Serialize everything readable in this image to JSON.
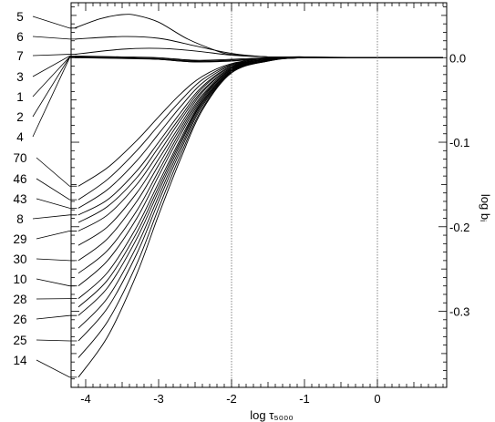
{
  "chart_data": {
    "type": "line",
    "xlabel": "log τ₅₀₀₀",
    "ylabel": "log bᵢ",
    "xlim": [
      -4.2,
      0.95
    ],
    "ylim": [
      -0.39,
      0.065
    ],
    "x_ticks": [
      -4,
      -3,
      -2,
      -1,
      0
    ],
    "x_tick_labels": [
      "-4",
      "-3",
      "-2",
      "-1",
      "0"
    ],
    "y_ticks": [
      0.0,
      -0.1,
      -0.2,
      -0.3
    ],
    "y_tick_labels": [
      "0.0",
      "-0.1",
      "-0.2",
      "-0.3"
    ],
    "vertical_dotted_lines_at": [
      -2,
      0
    ],
    "grid": false,
    "legend": "left",
    "level_labels": [
      "5",
      "6",
      "7",
      "3",
      "1",
      "2",
      "4",
      "70",
      "46",
      "43",
      "8",
      "29",
      "30",
      "10",
      "28",
      "26",
      "25",
      "14"
    ],
    "series": [
      {
        "name": "5",
        "x": [
          -4.15,
          -3.8,
          -3.5,
          -3.3,
          -3.0,
          -2.6,
          -2.2,
          -2.0,
          -1.5,
          -1.0,
          -0.5,
          0.0,
          0.9
        ],
        "values": [
          0.035,
          0.046,
          0.051,
          0.05,
          0.042,
          0.022,
          0.008,
          0.004,
          0.001,
          0.001,
          0.0,
          0.0,
          0.0
        ]
      },
      {
        "name": "6",
        "x": [
          -4.15,
          -3.5,
          -3.0,
          -2.5,
          -2.0,
          -1.5,
          -1.0,
          0.0,
          0.9
        ],
        "values": [
          0.022,
          0.025,
          0.023,
          0.014,
          0.005,
          0.001,
          0.001,
          0.0,
          0.0
        ]
      },
      {
        "name": "7",
        "x": [
          -4.15,
          -3.5,
          -3.0,
          -2.5,
          -2.0,
          -1.5,
          -1.0,
          0.0,
          0.9
        ],
        "values": [
          0.004,
          0.01,
          0.011,
          0.008,
          0.003,
          0.001,
          0.0,
          0.0,
          0.0
        ]
      },
      {
        "name": "3",
        "x": [
          -4.15,
          -3.5,
          -3.0,
          -2.5,
          -2.0,
          -1.5,
          -1.0,
          0.0,
          0.9
        ],
        "values": [
          0.002,
          0.001,
          0.0,
          -0.003,
          -0.002,
          0.0,
          0.0,
          0.0,
          0.0
        ]
      },
      {
        "name": "1",
        "x": [
          -4.15,
          -3.5,
          -3.0,
          -2.5,
          -2.0,
          -1.5,
          -1.0,
          0.0,
          0.9
        ],
        "values": [
          0.001,
          0.0,
          -0.001,
          -0.004,
          -0.003,
          -0.001,
          0.0,
          0.0,
          0.0
        ]
      },
      {
        "name": "2",
        "x": [
          -4.15,
          -3.5,
          -3.0,
          -2.5,
          -2.0,
          -1.5,
          -1.0,
          0.0,
          0.9
        ],
        "values": [
          0.001,
          0.0,
          -0.002,
          -0.005,
          -0.003,
          -0.001,
          0.0,
          0.0,
          0.0
        ]
      },
      {
        "name": "4",
        "x": [
          -4.15,
          -3.5,
          -3.0,
          -2.5,
          -2.0,
          -1.5,
          -1.0,
          0.0,
          0.9
        ],
        "values": [
          0.0,
          -0.001,
          -0.002,
          -0.005,
          -0.004,
          -0.001,
          0.0,
          0.0,
          0.0
        ]
      },
      {
        "name": "70",
        "x": [
          -4.1,
          -3.7,
          -3.3,
          -3.0,
          -2.7,
          -2.4,
          -2.0,
          -1.5,
          -1.0,
          0.0,
          0.9
        ],
        "values": [
          -0.152,
          -0.13,
          -0.098,
          -0.07,
          -0.043,
          -0.022,
          -0.007,
          -0.001,
          0.0,
          0.0,
          0.0
        ]
      },
      {
        "name": "46",
        "x": [
          -4.1,
          -3.7,
          -3.3,
          -3.0,
          -2.7,
          -2.4,
          -2.0,
          -1.5,
          -1.0,
          0.0,
          0.9
        ],
        "values": [
          -0.168,
          -0.144,
          -0.11,
          -0.08,
          -0.051,
          -0.026,
          -0.008,
          -0.001,
          0.0,
          0.0,
          0.0
        ]
      },
      {
        "name": "43",
        "x": [
          -4.1,
          -3.7,
          -3.3,
          -3.0,
          -2.7,
          -2.4,
          -2.0,
          -1.5,
          -1.0,
          0.0,
          0.9
        ],
        "values": [
          -0.178,
          -0.156,
          -0.122,
          -0.09,
          -0.058,
          -0.03,
          -0.009,
          -0.002,
          0.0,
          0.0,
          0.0
        ]
      },
      {
        "name": "8",
        "x": [
          -4.1,
          -3.7,
          -3.3,
          -3.0,
          -2.7,
          -2.4,
          -2.0,
          -1.5,
          -1.0,
          0.0,
          0.9
        ],
        "values": [
          -0.186,
          -0.168,
          -0.134,
          -0.1,
          -0.065,
          -0.034,
          -0.01,
          -0.002,
          0.0,
          0.0,
          0.0
        ]
      },
      {
        "name": "29",
        "x": [
          -4.1,
          -3.7,
          -3.3,
          -3.0,
          -2.7,
          -2.4,
          -2.0,
          -1.5,
          -1.0,
          0.0,
          0.9
        ],
        "values": [
          -0.205,
          -0.186,
          -0.15,
          -0.113,
          -0.074,
          -0.039,
          -0.012,
          -0.002,
          0.0,
          0.0,
          0.0
        ]
      },
      {
        "name": "30",
        "x": [
          -4.1,
          -3.7,
          -3.3,
          -3.0,
          -2.7,
          -2.4,
          -2.0,
          -1.5,
          -1.0,
          0.0,
          0.9
        ],
        "values": [
          -0.24,
          -0.214,
          -0.17,
          -0.127,
          -0.083,
          -0.044,
          -0.013,
          -0.003,
          0.0,
          0.0,
          0.0
        ]
      },
      {
        "name": "10",
        "x": [
          -4.1,
          -3.7,
          -3.3,
          -3.0,
          -2.7,
          -2.4,
          -2.0,
          -1.5,
          -1.0,
          0.0,
          0.9
        ],
        "values": [
          -0.27,
          -0.24,
          -0.19,
          -0.14,
          -0.091,
          -0.048,
          -0.014,
          -0.003,
          0.0,
          0.0,
          0.0
        ]
      },
      {
        "name": "28",
        "x": [
          -4.1,
          -3.7,
          -3.3,
          -3.0,
          -2.7,
          -2.4,
          -2.0,
          -1.5,
          -1.0,
          0.0,
          0.9
        ],
        "values": [
          -0.285,
          -0.254,
          -0.2,
          -0.148,
          -0.096,
          -0.05,
          -0.015,
          -0.003,
          0.0,
          0.0,
          0.0
        ]
      },
      {
        "name": "26",
        "x": [
          -4.1,
          -3.7,
          -3.3,
          -3.0,
          -2.7,
          -2.4,
          -2.0,
          -1.5,
          -1.0,
          0.0,
          0.9
        ],
        "values": [
          -0.305,
          -0.272,
          -0.214,
          -0.158,
          -0.102,
          -0.053,
          -0.016,
          -0.003,
          0.0,
          0.0,
          0.0
        ]
      },
      {
        "name": "25",
        "x": [
          -4.1,
          -3.7,
          -3.3,
          -3.0,
          -2.7,
          -2.4,
          -2.0,
          -1.5,
          -1.0,
          0.0,
          0.9
        ],
        "values": [
          -0.335,
          -0.296,
          -0.232,
          -0.17,
          -0.11,
          -0.057,
          -0.017,
          -0.003,
          0.0,
          0.0,
          0.0
        ]
      },
      {
        "name": "14",
        "x": [
          -4.1,
          -3.7,
          -3.3,
          -3.0,
          -2.7,
          -2.4,
          -2.0,
          -1.5,
          -1.0,
          0.0,
          0.9
        ],
        "values": [
          -0.378,
          -0.33,
          -0.256,
          -0.186,
          -0.12,
          -0.062,
          -0.018,
          -0.004,
          0.0,
          0.0,
          0.0
        ]
      },
      {
        "name": "",
        "x": [
          -4.1,
          -3.7,
          -3.3,
          -3.0,
          -2.7,
          -2.4,
          -2.0,
          -1.5,
          -1.0,
          0.0,
          0.9
        ],
        "values": [
          -0.195,
          -0.176,
          -0.142,
          -0.106,
          -0.07,
          -0.036,
          -0.011,
          -0.002,
          0.0,
          0.0,
          0.0
        ]
      },
      {
        "name": "",
        "x": [
          -4.1,
          -3.7,
          -3.3,
          -3.0,
          -2.7,
          -2.4,
          -2.0,
          -1.5,
          -1.0,
          0.0,
          0.9
        ],
        "values": [
          -0.222,
          -0.2,
          -0.16,
          -0.12,
          -0.079,
          -0.041,
          -0.012,
          -0.002,
          0.0,
          0.0,
          0.0
        ]
      },
      {
        "name": "",
        "x": [
          -4.1,
          -3.7,
          -3.3,
          -3.0,
          -2.7,
          -2.4,
          -2.0,
          -1.5,
          -1.0,
          0.0,
          0.9
        ],
        "values": [
          -0.255,
          -0.228,
          -0.181,
          -0.134,
          -0.087,
          -0.046,
          -0.014,
          -0.003,
          0.0,
          0.0,
          0.0
        ]
      },
      {
        "name": "",
        "x": [
          -4.1,
          -3.7,
          -3.3,
          -3.0,
          -2.7,
          -2.4,
          -2.0,
          -1.5,
          -1.0,
          0.0,
          0.9
        ],
        "values": [
          -0.295,
          -0.263,
          -0.207,
          -0.153,
          -0.099,
          -0.052,
          -0.016,
          -0.003,
          0.0,
          0.0,
          0.0
        ]
      },
      {
        "name": "",
        "x": [
          -4.1,
          -3.7,
          -3.3,
          -3.0,
          -2.7,
          -2.4,
          -2.0,
          -1.5,
          -1.0,
          0.0,
          0.9
        ],
        "values": [
          -0.32,
          -0.284,
          -0.223,
          -0.164,
          -0.106,
          -0.055,
          -0.016,
          -0.003,
          0.0,
          0.0,
          0.0
        ]
      },
      {
        "name": "",
        "x": [
          -4.1,
          -3.7,
          -3.3,
          -3.0,
          -2.7,
          -2.4,
          -2.0,
          -1.5,
          -1.0,
          0.0,
          0.9
        ],
        "values": [
          -0.355,
          -0.312,
          -0.244,
          -0.178,
          -0.115,
          -0.06,
          -0.017,
          -0.004,
          0.0,
          0.0,
          0.0
        ]
      }
    ]
  }
}
